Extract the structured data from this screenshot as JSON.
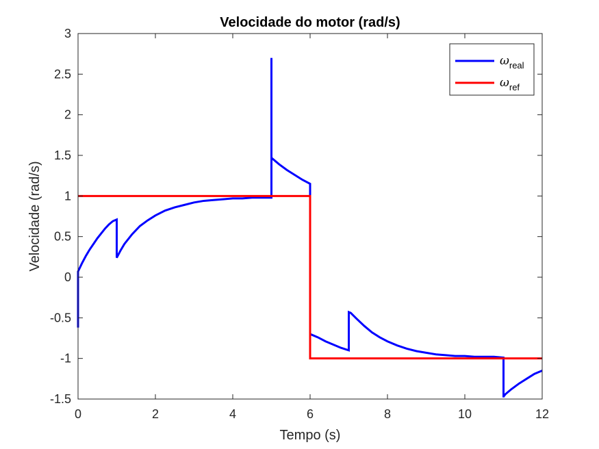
{
  "chart_data": {
    "type": "line",
    "title": "Velocidade do motor (rad/s)",
    "xlabel": "Tempo (s)",
    "ylabel": "Velocidade (rad/s)",
    "xlim": [
      0,
      12
    ],
    "ylim": [
      -1.5,
      3
    ],
    "xticks": [
      0,
      2,
      4,
      6,
      8,
      10,
      12
    ],
    "xtick_labels": [
      "0",
      "2",
      "4",
      "6",
      "8",
      "10",
      "12"
    ],
    "yticks": [
      -1.5,
      -1,
      -0.5,
      0,
      0.5,
      1,
      1.5,
      2,
      2.5,
      3
    ],
    "ytick_labels": [
      "-1.5",
      "-1",
      "-0.5",
      "0",
      "0.5",
      "1",
      "1.5",
      "2",
      "2.5",
      "3"
    ],
    "grid": false,
    "legend_position": "top-right",
    "series": [
      {
        "name": "ω_real",
        "legend_symbol": "ω",
        "legend_sub": "real",
        "color": "#0000ff",
        "x": [
          0,
          0,
          0.05,
          0.1,
          0.2,
          0.3,
          0.4,
          0.5,
          0.6,
          0.7,
          0.8,
          0.9,
          1.0,
          1.0,
          1.1,
          1.2,
          1.4,
          1.6,
          1.8,
          2.0,
          2.25,
          2.5,
          2.75,
          3.0,
          3.25,
          3.5,
          3.75,
          4.0,
          4.25,
          4.5,
          4.75,
          5.0,
          5.0,
          5.0,
          5.05,
          5.2,
          5.4,
          5.6,
          5.8,
          6.0,
          6.0,
          6.0,
          6.2,
          6.4,
          6.6,
          6.8,
          7.0,
          7.0,
          7.05,
          7.2,
          7.4,
          7.6,
          7.8,
          8.0,
          8.25,
          8.5,
          8.75,
          9.0,
          9.25,
          9.5,
          9.75,
          10.0,
          10.25,
          10.5,
          10.75,
          11.0,
          11.0,
          11.0,
          11.05,
          11.2,
          11.4,
          11.6,
          11.8,
          12.0
        ],
        "y": [
          -0.62,
          0.07,
          0.12,
          0.17,
          0.26,
          0.34,
          0.41,
          0.48,
          0.54,
          0.6,
          0.65,
          0.69,
          0.71,
          0.24,
          0.33,
          0.41,
          0.53,
          0.63,
          0.7,
          0.76,
          0.82,
          0.86,
          0.89,
          0.92,
          0.94,
          0.95,
          0.96,
          0.97,
          0.97,
          0.98,
          0.98,
          0.98,
          2.7,
          1.47,
          1.45,
          1.39,
          1.32,
          1.26,
          1.2,
          1.15,
          -0.7,
          -0.7,
          -0.74,
          -0.79,
          -0.83,
          -0.87,
          -0.9,
          -0.43,
          -0.44,
          -0.51,
          -0.6,
          -0.68,
          -0.74,
          -0.79,
          -0.84,
          -0.88,
          -0.91,
          -0.93,
          -0.95,
          -0.96,
          -0.97,
          -0.97,
          -0.98,
          -0.98,
          -0.98,
          -0.99,
          -1.48,
          -1.47,
          -1.44,
          -1.38,
          -1.31,
          -1.25,
          -1.19,
          -1.15
        ]
      },
      {
        "name": "ω_ref",
        "legend_symbol": "ω",
        "legend_sub": "ref",
        "color": "#ff0000",
        "x": [
          0,
          6,
          6,
          12
        ],
        "y": [
          1,
          1,
          -1,
          -1
        ]
      }
    ]
  }
}
